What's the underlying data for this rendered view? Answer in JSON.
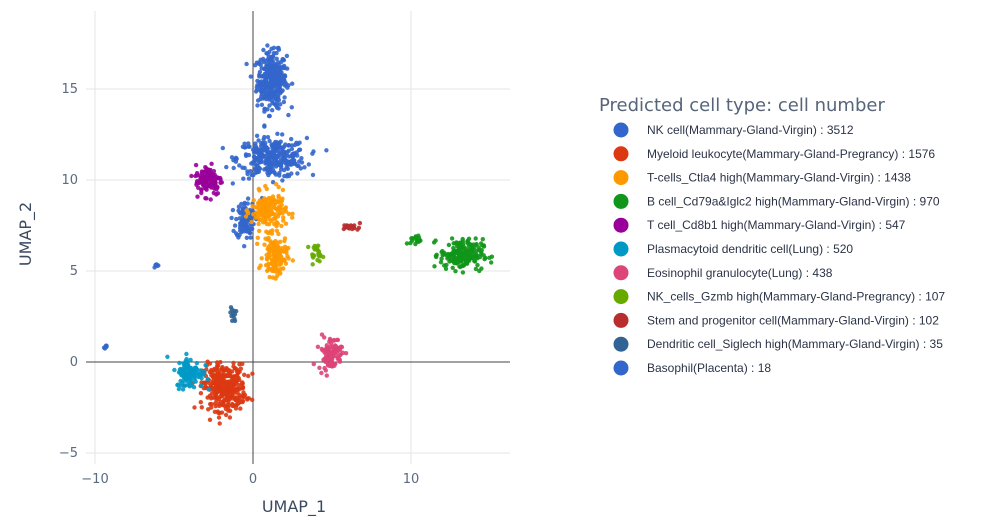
{
  "chart_data": {
    "type": "scatter",
    "xlabel": "UMAP_1",
    "ylabel": "UMAP_2",
    "xlim": [
      -10,
      16
    ],
    "ylim": [
      -5.5,
      19
    ],
    "x_ticks": [
      -10,
      0,
      10
    ],
    "x_tick_labels": [
      "−10",
      "0",
      "10"
    ],
    "y_ticks": [
      -5,
      0,
      5,
      10,
      15
    ],
    "y_tick_labels": [
      "−5",
      "0",
      "5",
      "10",
      "15"
    ],
    "grid": true,
    "legend_title": "Predicted cell type: cell number",
    "legend_position": "right",
    "series": [
      {
        "name": "NK cell(Mammary-Gland-Virgin) : 3512",
        "color": "#3366cc",
        "count": 3512,
        "clusters": [
          [
            1.2,
            15.5,
            1.1,
            1.8,
            0.45
          ],
          [
            1.2,
            11.2,
            2.6,
            1.3,
            0.4
          ],
          [
            -0.5,
            7.8,
            0.7,
            1.2,
            0.15
          ]
        ]
      },
      {
        "name": "Myeloid leukocyte(Mammary-Gland-Pregrancy) : 1576",
        "color": "#dc3912",
        "count": 1576,
        "clusters": [
          [
            -1.8,
            -1.4,
            1.6,
            1.5,
            1.0
          ]
        ]
      },
      {
        "name": "T-cells_Ctla4 high(Mammary-Gland-Virgin) : 1438",
        "color": "#ff9900",
        "count": 1438,
        "clusters": [
          [
            1.0,
            8.3,
            1.3,
            1.2,
            0.55
          ],
          [
            1.4,
            5.8,
            0.9,
            1.3,
            0.45
          ]
        ]
      },
      {
        "name": "B cell_Cd79a&Iglc2 high(Mammary-Gland-Virgin) : 970",
        "color": "#109618",
        "count": 970,
        "clusters": [
          [
            13.2,
            5.9,
            1.6,
            1.0,
            0.92
          ],
          [
            10.3,
            6.7,
            0.4,
            0.3,
            0.08
          ]
        ]
      },
      {
        "name": "T cell_Cd8b1 high(Mammary-Gland-Virgin) : 547",
        "color": "#990099",
        "count": 547,
        "clusters": [
          [
            -2.8,
            10.0,
            1.0,
            1.0,
            1.0
          ]
        ]
      },
      {
        "name": "Plasmacytoid dendritic cell(Lung) : 520",
        "color": "#0099c6",
        "count": 520,
        "clusters": [
          [
            -4.0,
            -0.6,
            1.0,
            1.0,
            1.0
          ]
        ]
      },
      {
        "name": "Eosinophil granulocyte(Lung) : 438",
        "color": "#dd4477",
        "count": 438,
        "clusters": [
          [
            4.9,
            0.5,
            0.9,
            1.1,
            1.0
          ]
        ]
      },
      {
        "name": "NK_cells_Gzmb high(Mammary-Gland-Pregrancy) : 107",
        "color": "#66aa00",
        "count": 107,
        "clusters": [
          [
            4.0,
            6.0,
            0.5,
            0.5,
            1.0
          ]
        ]
      },
      {
        "name": "Stem and progenitor cell(Mammary-Gland-Virgin) : 102",
        "color": "#b82e2e",
        "count": 102,
        "clusters": [
          [
            6.3,
            7.4,
            0.7,
            0.2,
            1.0
          ]
        ]
      },
      {
        "name": "Dendritic cell_Siglech high(Mammary-Gland-Virgin) : 35",
        "color": "#316395",
        "count": 35,
        "clusters": [
          [
            -1.3,
            2.7,
            0.3,
            0.7,
            1.0
          ]
        ]
      },
      {
        "name": "Basophil(Placenta) : 18",
        "color": "#3366cc",
        "count": 18,
        "clusters": [
          [
            -9.3,
            0.8,
            0.15,
            0.15,
            0.5
          ],
          [
            -6.1,
            5.3,
            0.15,
            0.15,
            0.5
          ]
        ]
      }
    ]
  }
}
